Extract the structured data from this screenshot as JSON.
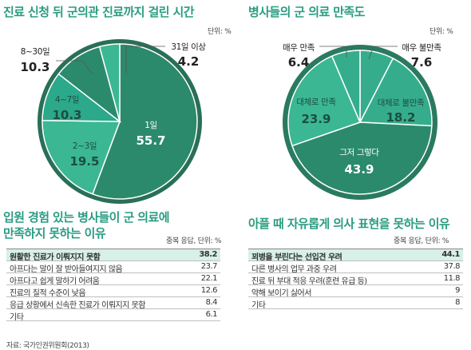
{
  "chart_data": [
    {
      "type": "pie",
      "title": "진료 신청 뒤 군의관 진료까지 걸린 시간",
      "unit": "단위: %",
      "slices": [
        {
          "label": "1일",
          "value": 55.7,
          "color": "#2c8a6c"
        },
        {
          "label": "2~3일",
          "value": 19.5,
          "color": "#3bb793"
        },
        {
          "label": "4~7일",
          "value": 10.3,
          "color": "#2ba98a"
        },
        {
          "label": "8~30일",
          "value": 10.3,
          "color": "#2c8a6c"
        },
        {
          "label": "31일 이상",
          "value": 4.2,
          "color": "#3bb793"
        }
      ]
    },
    {
      "type": "pie",
      "title": "병사들의 군 의료 만족도",
      "unit": "단위: %",
      "slices": [
        {
          "label": "매우 불만족",
          "value": 7.6,
          "color": "#35ad8d"
        },
        {
          "label": "대체로 불만족",
          "value": 18.2,
          "color": "#35ad8d"
        },
        {
          "label": "그저 그렇다",
          "value": 43.9,
          "color": "#2c8a6c"
        },
        {
          "label": "대체로 만족",
          "value": 23.9,
          "color": "#3bb793"
        },
        {
          "label": "매우 만족",
          "value": 6.4,
          "color": "#35ad8d"
        }
      ]
    },
    {
      "type": "table",
      "title": "입원 경험 있는 병사들이 군 의료에 만족하지 못하는 이유",
      "unit": "중복 응답, 단위: %",
      "rows": [
        {
          "label": "원활한 진료가 이뤄지지 못함",
          "value": "38.2"
        },
        {
          "label": "아프다는 말이 잘 받아들여지지 않음",
          "value": "23.7"
        },
        {
          "label": "아프다고 쉽게 말하기 어려움",
          "value": "22.1"
        },
        {
          "label": "진료의 질적 수준이 낮음",
          "value": "12.6"
        },
        {
          "label": "응급 상황에서 신속한 진료가 이뤄지지 못함",
          "value": "8.4"
        },
        {
          "label": "기타",
          "value": "6.1"
        }
      ]
    },
    {
      "type": "table",
      "title": "아플 때 자유롭게 의사 표현을 못하는 이유",
      "unit": "중복 응답, 단위: %",
      "rows": [
        {
          "label": "꾀병을 부린다는 선입견 우려",
          "value": "44.1"
        },
        {
          "label": "다른 병사의 업무 과중 우려",
          "value": "37.8"
        },
        {
          "label": "진료 뒤 부대 적응 우려(훈련 유급 등)",
          "value": "11.8"
        },
        {
          "label": "약해 보이기 싫어서",
          "value": "9"
        },
        {
          "label": "기타",
          "value": "8"
        }
      ]
    }
  ],
  "source": "자료: 국가인권위원회(2013)"
}
